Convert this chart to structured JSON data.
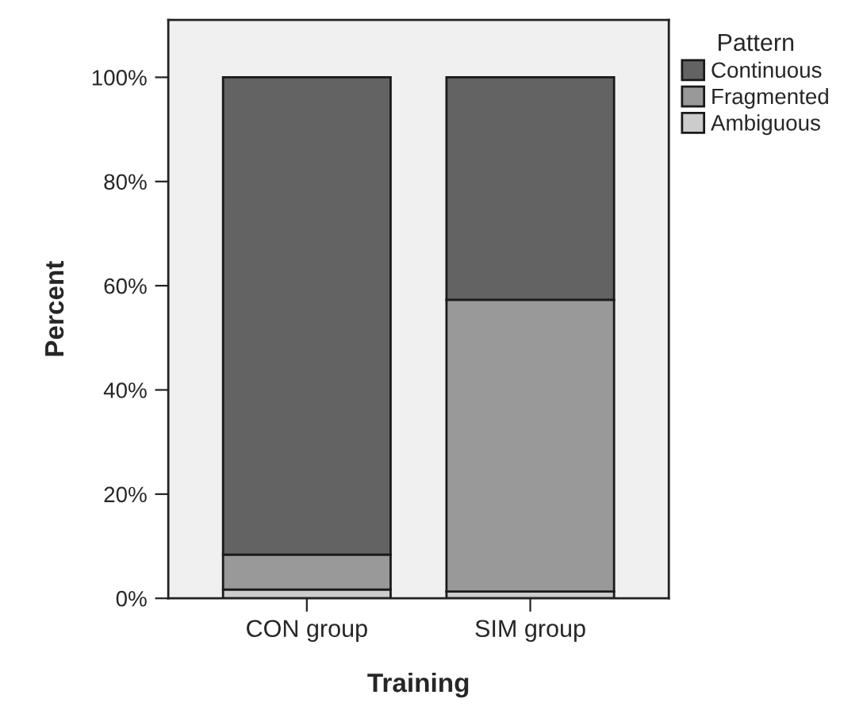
{
  "chart_data": {
    "type": "bar",
    "stacked": true,
    "xlabel": "Training",
    "ylabel": "Percent",
    "legend_title": "Pattern",
    "legend": "top right",
    "categories": [
      "CON group",
      "SIM group"
    ],
    "series": [
      {
        "name": "Ambiguous",
        "color": "#cccccc",
        "values": [
          1.7,
          1.3
        ]
      },
      {
        "name": "Fragmented",
        "color": "#999999",
        "values": [
          6.7,
          56.0
        ]
      },
      {
        "name": "Continuous",
        "color": "#636363",
        "values": [
          91.6,
          42.7
        ]
      }
    ],
    "ylim": [
      0,
      111
    ],
    "yticks": [
      {
        "value": 0,
        "label": "0%"
      },
      {
        "value": 20,
        "label": "20%"
      },
      {
        "value": 40,
        "label": "40%"
      },
      {
        "value": 60,
        "label": "60%"
      },
      {
        "value": 80,
        "label": "80%"
      },
      {
        "value": 100,
        "label": "100%"
      }
    ],
    "grid": false
  }
}
